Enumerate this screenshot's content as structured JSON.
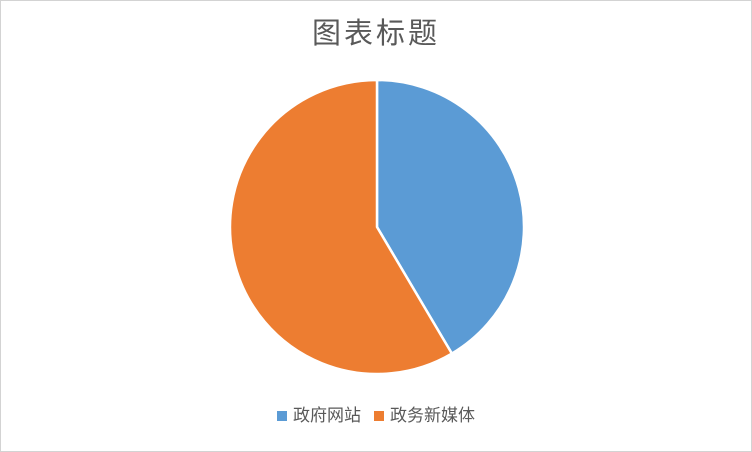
{
  "window": {
    "background_color": "#FFFFFF",
    "border_color": "#D3D3D3"
  },
  "chart_data": {
    "type": "pie",
    "title": "图表标题",
    "categories": [
      "政府网站",
      "政务新媒体"
    ],
    "values": [
      41.5,
      58.5
    ],
    "colors": [
      "#5B9BD5",
      "#ED7D31"
    ],
    "start_angle_deg": 0,
    "direction": "clockwise",
    "slice_border_color": "#FFFFFF",
    "slice_border_width": 2.5,
    "legend_position": "bottom",
    "title_color": "#595959",
    "legend_text_color": "#595959",
    "grid": false
  }
}
